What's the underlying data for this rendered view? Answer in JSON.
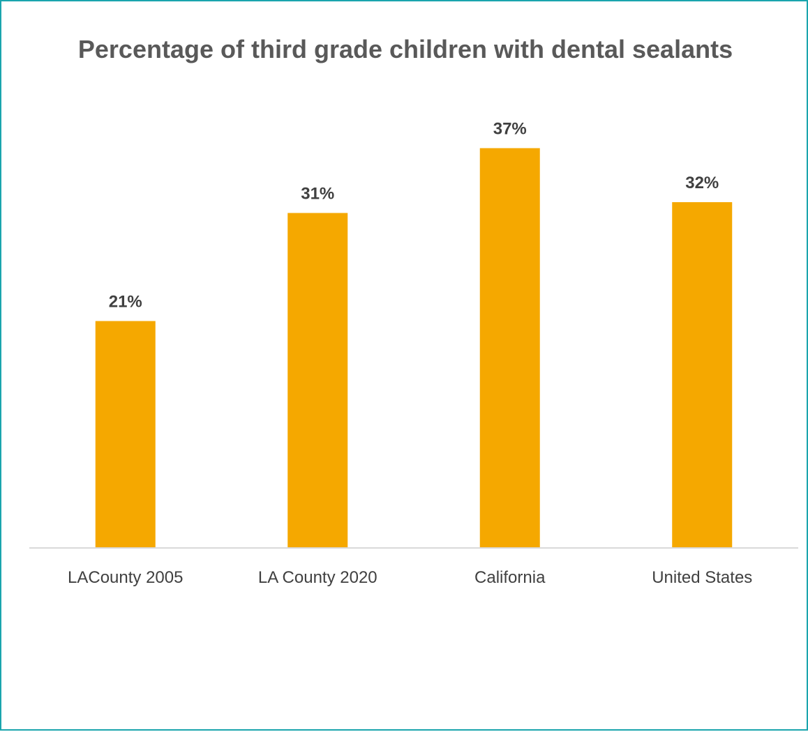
{
  "chart_data": {
    "type": "bar",
    "title": "Percentage of third grade children with dental sealants",
    "categories": [
      "LACounty 2005",
      "LA County 2020",
      "California",
      "United States"
    ],
    "values": [
      21,
      31,
      37,
      32
    ],
    "value_labels": [
      "21%",
      "31%",
      "37%",
      "32%"
    ],
    "unit": "%",
    "ylim": [
      0,
      45
    ],
    "grid": false,
    "legend": "none",
    "bar_color": "#f5a800",
    "axis_color": "#d9d9d9",
    "frame_color": "#1aa5ad"
  }
}
